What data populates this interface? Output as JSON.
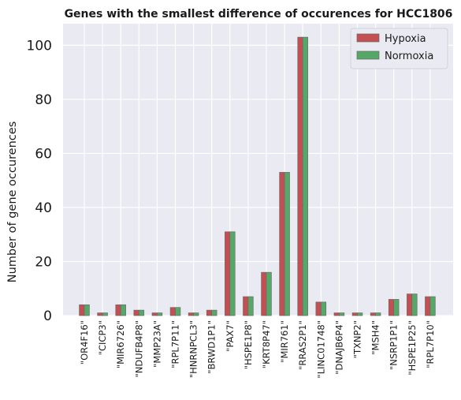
{
  "chart_data": {
    "type": "bar",
    "title": "Genes with the smallest difference of occurences for HCC1806",
    "xlabel": "",
    "ylabel": "Number of gene occurences",
    "ylim": [
      0,
      108
    ],
    "yticks": [
      0,
      20,
      40,
      60,
      80,
      100
    ],
    "grid": true,
    "legend_position": "top-right",
    "categories": [
      "\"OR4F16\"",
      "\"CICP3\"",
      "\"MIR6726\"",
      "\"NDUFB4P8\"",
      "\"MMP23A\"",
      "\"RPL7P11\"",
      "\"HNRNPCL3\"",
      "\"BRWD1P1\"",
      "\"PAX7\"",
      "\"HSPE1P8\"",
      "\"KRT8P47\"",
      "\"MIR761\"",
      "\"RRAS2P1\"",
      "\"LINC01748\"",
      "\"DNAJB6P4\"",
      "\"TXNP2\"",
      "\"MSH4\"",
      "\"NSRP1P1\"",
      "\"HSPE1P25\"",
      "\"RPL7P10\""
    ],
    "series": [
      {
        "name": "Hypoxia",
        "color": "#c44e52",
        "values": [
          4,
          1,
          4,
          2,
          1,
          3,
          1,
          2,
          31,
          7,
          16,
          53,
          103,
          5,
          1,
          1,
          1,
          6,
          8,
          7
        ]
      },
      {
        "name": "Normoxia",
        "color": "#55a868",
        "values": [
          4,
          1,
          4,
          2,
          1,
          3,
          1,
          2,
          31,
          7,
          16,
          53,
          103,
          5,
          1,
          1,
          1,
          6,
          8,
          7
        ]
      }
    ]
  },
  "style": {
    "plot_background": "#eaeaf2",
    "grid_color": "#ffffff"
  }
}
